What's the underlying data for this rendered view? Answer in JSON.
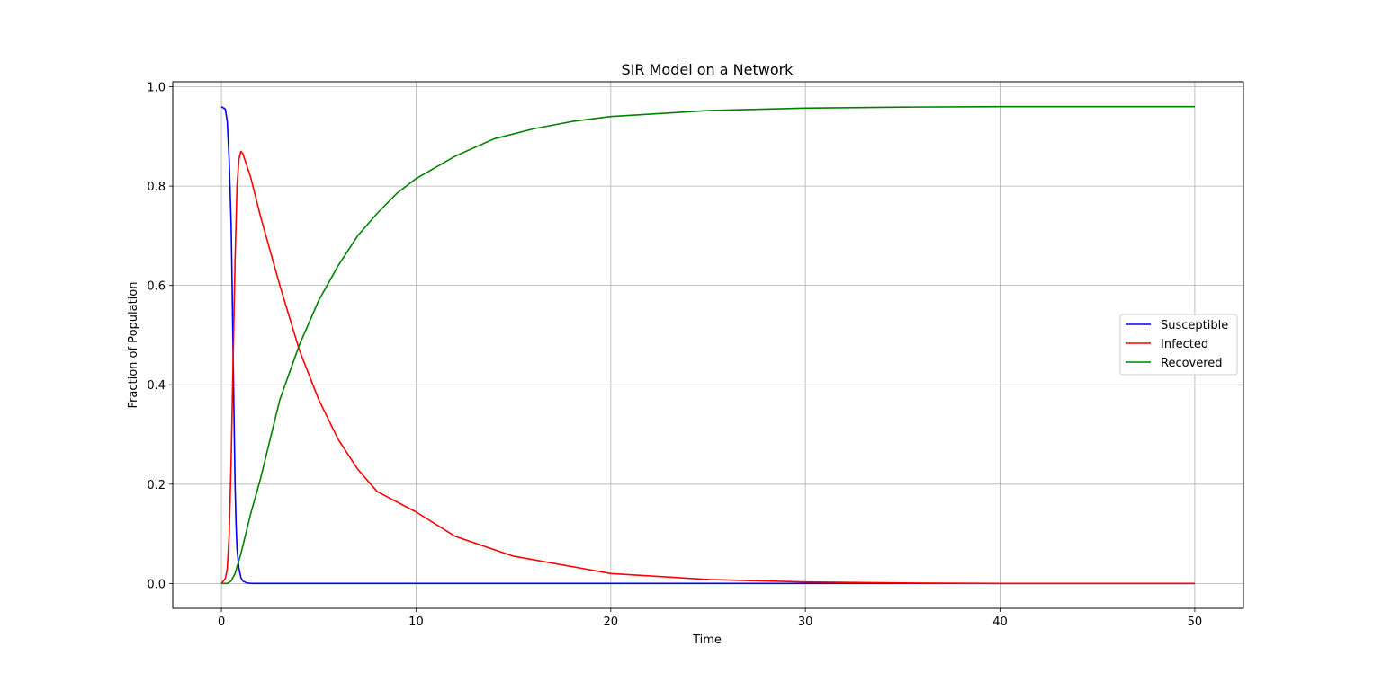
{
  "chart_data": {
    "type": "line",
    "title": "SIR Model on a Network",
    "xlabel": "Time",
    "ylabel": "Fraction of Population",
    "xlim": [
      -2.5,
      52.5
    ],
    "ylim": [
      -0.05,
      1.01
    ],
    "xticks": [
      0,
      10,
      20,
      30,
      40,
      50
    ],
    "xtick_labels": [
      "0",
      "10",
      "20",
      "30",
      "40",
      "50"
    ],
    "yticks": [
      0.0,
      0.2,
      0.4,
      0.6,
      0.8,
      1.0
    ],
    "ytick_labels": [
      "0.0",
      "0.2",
      "0.4",
      "0.6",
      "0.8",
      "1.0"
    ],
    "grid": true,
    "legend_position": "center-right",
    "series": [
      {
        "name": "Susceptible",
        "color": "#0000ff",
        "x": [
          0,
          0.2,
          0.3,
          0.4,
          0.5,
          0.55,
          0.6,
          0.65,
          0.7,
          0.75,
          0.8,
          0.9,
          1.0,
          1.1,
          1.3,
          1.6,
          2,
          5,
          10,
          20,
          30,
          40,
          50
        ],
        "y": [
          0.96,
          0.955,
          0.93,
          0.85,
          0.72,
          0.6,
          0.46,
          0.33,
          0.2,
          0.12,
          0.07,
          0.03,
          0.012,
          0.005,
          0.001,
          0.0,
          0.0,
          0.0,
          0.0,
          0.0,
          0.0,
          0.0,
          0.0
        ]
      },
      {
        "name": "Infected",
        "color": "#ff0000",
        "x": [
          0,
          0.2,
          0.3,
          0.4,
          0.5,
          0.6,
          0.7,
          0.8,
          0.9,
          1.0,
          1.1,
          1.5,
          2,
          3,
          4,
          5,
          6,
          7,
          8,
          10,
          12,
          15,
          20,
          25,
          30,
          35,
          40,
          45,
          50
        ],
        "y": [
          0.0,
          0.01,
          0.03,
          0.1,
          0.25,
          0.45,
          0.65,
          0.8,
          0.855,
          0.87,
          0.865,
          0.818,
          0.74,
          0.6,
          0.47,
          0.37,
          0.29,
          0.23,
          0.185,
          0.144,
          0.095,
          0.055,
          0.02,
          0.008,
          0.003,
          0.001,
          0.0,
          0.0,
          0.0
        ]
      },
      {
        "name": "Recovered",
        "color": "#008000",
        "x": [
          0,
          0.3,
          0.5,
          0.7,
          1.0,
          1.5,
          2,
          3,
          4,
          5,
          6,
          7,
          8,
          9,
          10,
          12,
          14,
          16,
          18,
          20,
          25,
          30,
          35,
          40,
          45,
          50
        ],
        "y": [
          0.0,
          0.0,
          0.005,
          0.02,
          0.06,
          0.14,
          0.21,
          0.37,
          0.48,
          0.57,
          0.64,
          0.7,
          0.745,
          0.785,
          0.815,
          0.86,
          0.895,
          0.915,
          0.93,
          0.94,
          0.952,
          0.957,
          0.959,
          0.96,
          0.96,
          0.96
        ]
      }
    ]
  }
}
